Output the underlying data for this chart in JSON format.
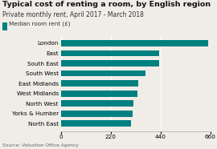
{
  "title": "Typical cost of renting a room, by English region",
  "subtitle": "Private monthly rent, April 2017 - March 2018",
  "legend_label": "Median room rent (£)",
  "source": "Source: Valuation Office Agency",
  "categories": [
    "London",
    "East",
    "South East",
    "South West",
    "East Midlands",
    "West Midlands",
    "North West",
    "Yorks & Humber",
    "North East"
  ],
  "values": [
    650,
    435,
    433,
    375,
    340,
    338,
    320,
    318,
    308
  ],
  "bar_color": "#008080",
  "background_color": "#f0ede8",
  "xlim": [
    0,
    660
  ],
  "xticks": [
    0,
    220,
    440,
    660
  ],
  "title_fontsize": 6.8,
  "subtitle_fontsize": 5.5,
  "label_fontsize": 5.2,
  "tick_fontsize": 5.2,
  "legend_fontsize": 5.2,
  "source_fontsize": 4.2
}
